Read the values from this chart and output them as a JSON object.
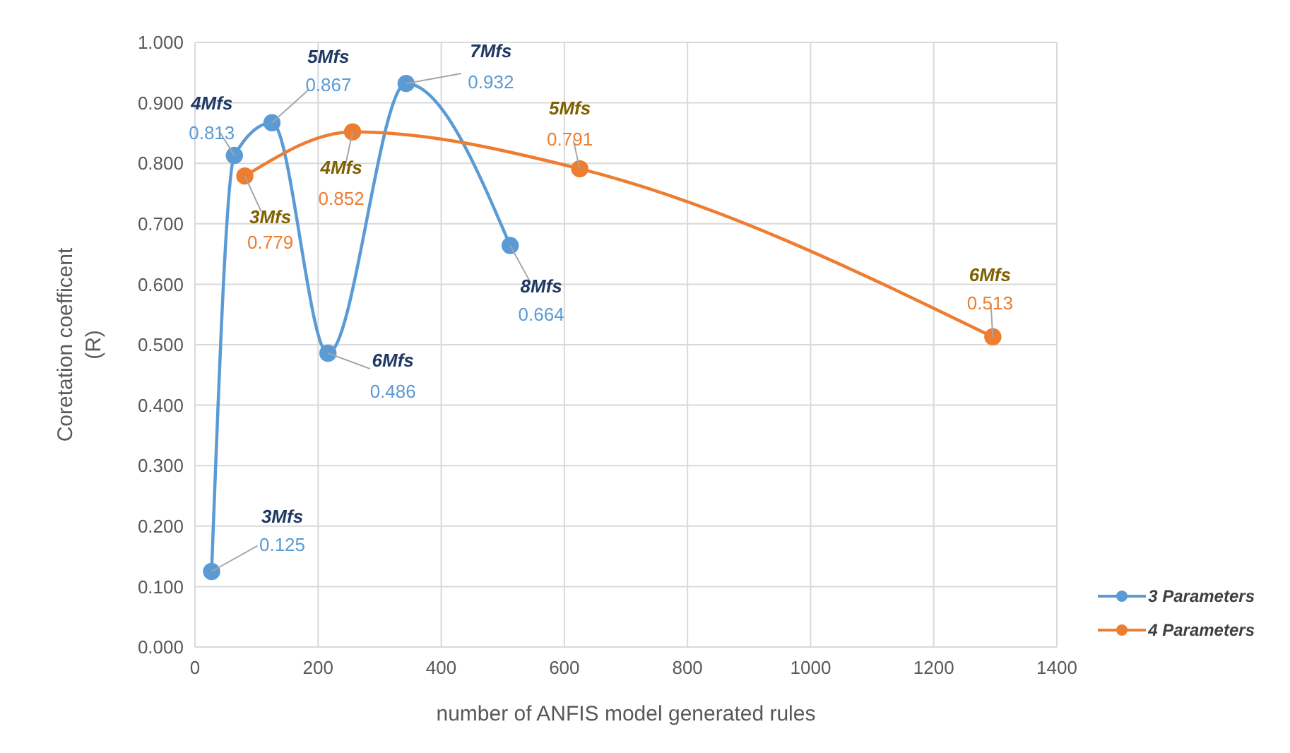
{
  "chart_data": {
    "type": "line",
    "xlabel": "number of ANFIS model generated rules",
    "ylabel": "Coretation coefficent\n(R)",
    "series": [
      {
        "name": "3 Parameters",
        "color": "#5b9bd5",
        "x": [
          27,
          64,
          125,
          216,
          343,
          512
        ],
        "values": [
          0.125,
          0.813,
          0.867,
          0.486,
          0.932,
          0.664
        ]
      },
      {
        "name": "4 Parameters",
        "color": "#ed7d31",
        "x": [
          81,
          256,
          625,
          1296
        ],
        "values": [
          0.779,
          0.852,
          0.791,
          0.513
        ]
      }
    ],
    "annotations": [
      {
        "text": "3Mfs",
        "x": 27,
        "y": 0.125
      },
      {
        "text": "4Mfs",
        "x": 64,
        "y": 0.813
      },
      {
        "text": "5Mfs",
        "x": 125,
        "y": 0.867
      },
      {
        "text": "6Mfs",
        "x": 216,
        "y": 0.486
      },
      {
        "text": "7Mfs",
        "x": 343,
        "y": 0.932
      },
      {
        "text": "8Mfs",
        "x": 512,
        "y": 0.664
      },
      {
        "text": "3Mfs",
        "x": 81,
        "y": 0.779
      },
      {
        "text": "4Mfs",
        "x": 256,
        "y": 0.852
      },
      {
        "text": "5Mfs",
        "x": 625,
        "y": 0.791
      },
      {
        "text": "6Mfs",
        "x": 1296,
        "y": 0.513
      }
    ],
    "data_labels": true,
    "xlim": [
      0,
      1400
    ],
    "xticks": [
      0,
      200,
      400,
      600,
      800,
      1000,
      1200,
      1400
    ],
    "ylim": [
      0,
      1
    ],
    "yticks": [
      {
        "value": 0,
        "label": "0.000"
      },
      {
        "value": 0.1,
        "label": "0.100"
      },
      {
        "value": 0.2,
        "label": "0.200"
      },
      {
        "value": 0.3,
        "label": "0.300"
      },
      {
        "value": 0.4,
        "label": "0.400"
      },
      {
        "value": 0.5,
        "label": "0.500"
      },
      {
        "value": 0.6,
        "label": "0.600"
      },
      {
        "value": 0.7,
        "label": "0.700"
      },
      {
        "value": 0.8,
        "label": "0.800"
      },
      {
        "value": 0.9,
        "label": "0.900"
      },
      {
        "value": 1,
        "label": "1.000"
      }
    ],
    "grid": true,
    "legend": "bottom right",
    "marker": "circle",
    "line_style": "solid"
  }
}
